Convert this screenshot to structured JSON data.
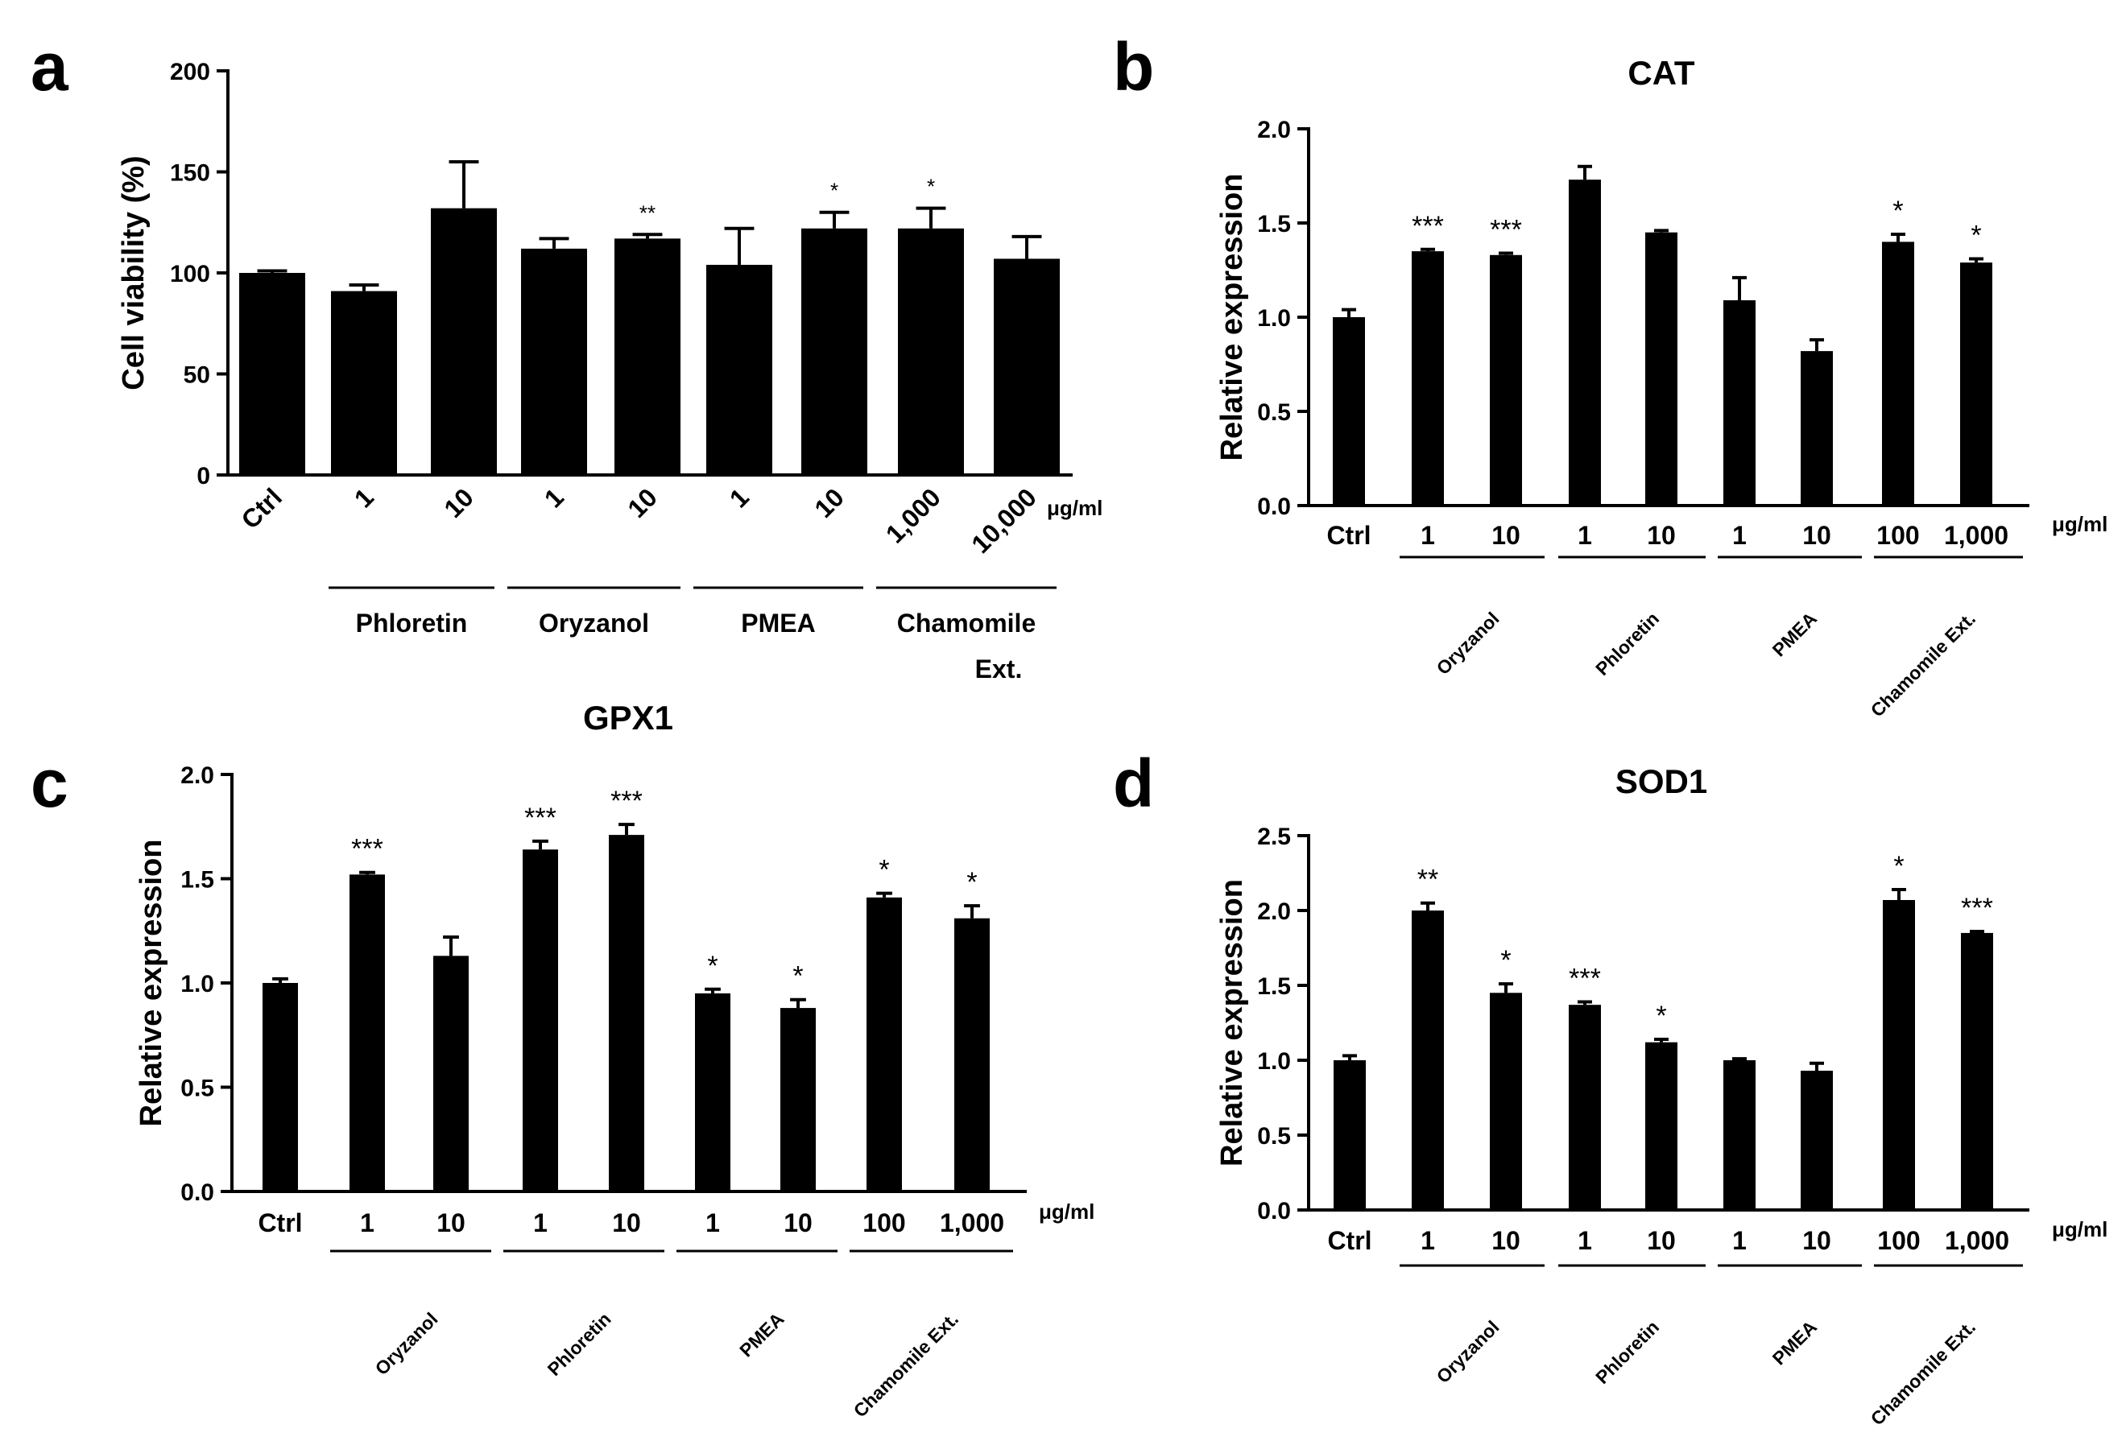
{
  "panels": [
    {
      "letter": "a",
      "chart_data": {
        "type": "bar",
        "title": "",
        "ylabel": "Cell viability (%)",
        "unit": "μg/ml",
        "ylim": [
          0,
          200
        ],
        "yticks": [
          "0",
          "50",
          "100",
          "150",
          "200"
        ],
        "categories": [
          "Ctrl",
          "1",
          "10",
          "1",
          "10",
          "1",
          "10",
          "1,000",
          "10,000"
        ],
        "values": [
          100,
          91,
          132,
          112,
          117,
          104,
          122,
          122,
          107
        ],
        "errors": [
          1,
          3,
          23,
          5,
          2,
          18,
          8,
          10,
          11
        ],
        "significance": [
          "",
          "",
          "",
          "",
          "**",
          "",
          "*",
          "*",
          ""
        ],
        "groups": [
          {
            "label": "Phloretin",
            "label2": ""
          },
          {
            "label": "Oryzanol",
            "label2": ""
          },
          {
            "label": "PMEA",
            "label2": ""
          },
          {
            "label": "Chamomile",
            "label2": "Ext."
          }
        ]
      }
    },
    {
      "letter": "b",
      "chart_data": {
        "type": "bar",
        "title": "CAT",
        "ylabel": "Relative expression",
        "unit": "μg/ml",
        "ylim": [
          0,
          2.0
        ],
        "yticks": [
          "0.0",
          "0.5",
          "1.0",
          "1.5",
          "2.0"
        ],
        "categories": [
          "Ctrl",
          "1",
          "10",
          "1",
          "10",
          "1",
          "10",
          "100",
          "1,000"
        ],
        "values": [
          1.0,
          1.35,
          1.33,
          1.73,
          1.45,
          1.09,
          0.82,
          1.4,
          1.29
        ],
        "errors": [
          0.04,
          0.01,
          0.01,
          0.07,
          0.01,
          0.12,
          0.06,
          0.04,
          0.02
        ],
        "significance": [
          "",
          "***",
          "***",
          "",
          "",
          "",
          "",
          "*",
          "*"
        ],
        "groups": [
          {
            "label": "Oryzanol"
          },
          {
            "label": "Phloretin"
          },
          {
            "label": "PMEA"
          },
          {
            "label": "Chamomile Ext."
          }
        ]
      }
    },
    {
      "letter": "c",
      "chart_data": {
        "type": "bar",
        "title": "GPX1",
        "ylabel": "Relative expression",
        "unit": "μg/ml",
        "ylim": [
          0,
          2.0
        ],
        "yticks": [
          "0.0",
          "0.5",
          "1.0",
          "1.5",
          "2.0"
        ],
        "categories": [
          "Ctrl",
          "1",
          "10",
          "1",
          "10",
          "1",
          "10",
          "100",
          "1,000"
        ],
        "values": [
          1.0,
          1.52,
          1.13,
          1.64,
          1.71,
          0.95,
          0.88,
          1.41,
          1.31
        ],
        "errors": [
          0.02,
          0.01,
          0.09,
          0.04,
          0.05,
          0.02,
          0.04,
          0.02,
          0.06
        ],
        "significance": [
          "",
          "***",
          "",
          "***",
          "***",
          "*",
          "*",
          "*",
          "*"
        ],
        "groups": [
          {
            "label": "Oryzanol"
          },
          {
            "label": "Phloretin"
          },
          {
            "label": "PMEA"
          },
          {
            "label": "Chamomile Ext."
          }
        ]
      }
    },
    {
      "letter": "d",
      "chart_data": {
        "type": "bar",
        "title": "SOD1",
        "ylabel": "Relative expression",
        "unit": "μg/ml",
        "ylim": [
          0,
          2.5
        ],
        "yticks": [
          "0.0",
          "0.5",
          "1.0",
          "1.5",
          "2.0",
          "2.5"
        ],
        "categories": [
          "Ctrl",
          "1",
          "10",
          "1",
          "10",
          "1",
          "10",
          "100",
          "1,000"
        ],
        "values": [
          1.0,
          2.0,
          1.45,
          1.37,
          1.12,
          1.0,
          0.93,
          2.07,
          1.85
        ],
        "errors": [
          0.03,
          0.05,
          0.06,
          0.02,
          0.02,
          0.01,
          0.05,
          0.07,
          0.01
        ],
        "significance": [
          "",
          "**",
          "*",
          "***",
          "*",
          "",
          "",
          "*",
          "***"
        ],
        "groups": [
          {
            "label": "Oryzanol"
          },
          {
            "label": "Phloretin"
          },
          {
            "label": "PMEA"
          },
          {
            "label": "Chamomile Ext."
          }
        ]
      }
    }
  ]
}
